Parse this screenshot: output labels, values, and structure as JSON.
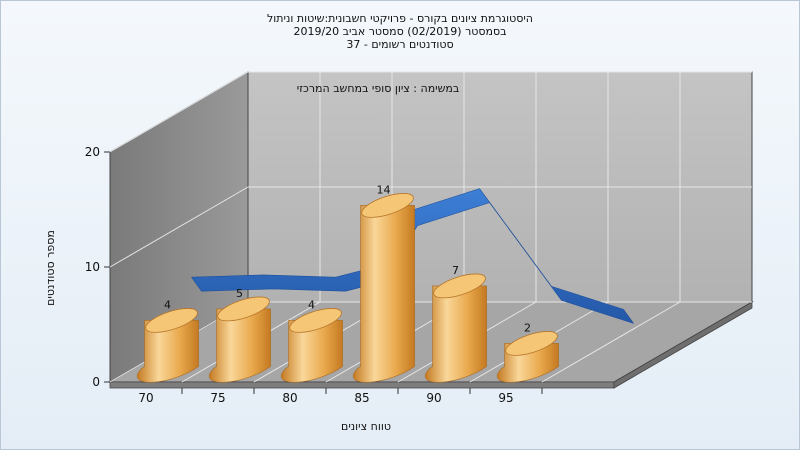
{
  "chart_data": {
    "type": "bar",
    "title_lines": [
      "היסטוגרמת ציונים בקורס - פרויקטי חשבונית:שיטות וניתול",
      "בסמסטר (02/2019) סמסטר אביב 2019/20",
      "סטודנטים רשומים - 37"
    ],
    "subtitle": "במשימה : ציון סופי במחשב המרכזי",
    "xlabel": "טווח ציונים",
    "ylabel": "מספר סטודנטים",
    "x_ticks": [
      "70",
      "75",
      "80",
      "85",
      "90",
      "95"
    ],
    "y_ticks": [
      0,
      10,
      20
    ],
    "ylim": [
      0,
      20
    ],
    "bars": [
      {
        "x": 70,
        "value": 4
      },
      {
        "x": 75,
        "value": 5
      },
      {
        "x": 80,
        "value": 4
      },
      {
        "x": 85,
        "value": 14
      },
      {
        "x": 90,
        "value": 7
      },
      {
        "x": 95,
        "value": 2
      }
    ],
    "ribbon_series": [
      {
        "x": 70,
        "value": 4.8
      },
      {
        "x": 75,
        "value": 5.0
      },
      {
        "x": 80,
        "value": 4.8
      },
      {
        "x": 82.5,
        "value": 5.6
      },
      {
        "x": 85,
        "value": 10.5
      },
      {
        "x": 90,
        "value": 12.5
      },
      {
        "x": 95,
        "value": 4.0
      },
      {
        "x": 100,
        "value": 2.0
      }
    ],
    "grid": true,
    "colors": {
      "bar_light": "#f7cf88",
      "bar_dark": "#d08a2a",
      "bar_top": "#f9d79a",
      "ribbon": "#2f6cc0",
      "back_wall": "#b9b9b9",
      "side_wall": "#8a8a8a",
      "floor": "#a9a9a9"
    }
  }
}
